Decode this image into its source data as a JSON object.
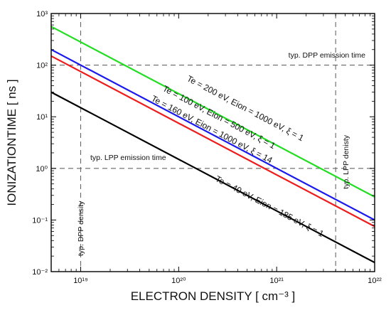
{
  "chart_data": {
    "type": "line",
    "xlabel": "ELECTRON DENSITY [ cm⁻³ ]",
    "ylabel": "IONIZATIONTIME [ ns ]",
    "x_scale": "log",
    "y_scale": "log",
    "xlim": [
      5e+18,
      1e+22
    ],
    "ylim": [
      0.01,
      1000
    ],
    "x_ticks": [
      {
        "value": 1e+19,
        "label": "10¹⁹"
      },
      {
        "value": 1e+20,
        "label": "10²⁰"
      },
      {
        "value": 1e+21,
        "label": "10²¹"
      },
      {
        "value": 1e+22,
        "label": "10²²"
      }
    ],
    "y_ticks": [
      {
        "value": 0.01,
        "label": "10⁻²"
      },
      {
        "value": 0.1,
        "label": "10⁻¹"
      },
      {
        "value": 1,
        "label": "10⁰"
      },
      {
        "value": 10,
        "label": "10¹"
      },
      {
        "value": 100,
        "label": "10²"
      },
      {
        "value": 1000,
        "label": "10³"
      }
    ],
    "series": [
      {
        "label": "Te = 200 eV, Eion = 1000 eV, ξ = 1",
        "color": "#22dd22",
        "x": [
          5e+18,
          1e+22
        ],
        "y": [
          560,
          0.28
        ]
      },
      {
        "label": "Te = 100 eV, Eion = 500 eV, ξ = 1",
        "color": "#1a1aee",
        "x": [
          5e+18,
          1e+22
        ],
        "y": [
          200,
          0.1
        ]
      },
      {
        "label": "Te = 160 eV, Eion = 1000 eV, ξ = 14",
        "color": "#ee1c1c",
        "x": [
          5e+18,
          1e+22
        ],
        "y": [
          150,
          0.075
        ]
      },
      {
        "label": "Te = 40 eV, Eion = 185 eV, ξ = 1",
        "color": "#000000",
        "x": [
          5e+18,
          1e+22
        ],
        "y": [
          30,
          0.015
        ]
      }
    ],
    "reference_lines": [
      {
        "orientation": "horizontal",
        "value": 100,
        "label": "typ. DPP emission time"
      },
      {
        "orientation": "horizontal",
        "value": 1,
        "label": "typ. LPP emission time"
      },
      {
        "orientation": "vertical",
        "value": 1e+19,
        "label": "typ. DPP density"
      },
      {
        "orientation": "vertical",
        "value": 4e+21,
        "label": "typ. LPP denisty"
      }
    ],
    "grid": false,
    "legend": "none"
  }
}
